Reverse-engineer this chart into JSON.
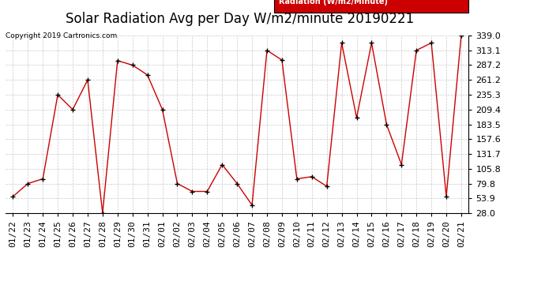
{
  "title": "Solar Radiation Avg per Day W/m2/minute 20190221",
  "copyright": "Copyright 2019 Cartronics.com",
  "legend_label": "Radiation (W/m2/Minute)",
  "x_labels": [
    "01/22",
    "01/23",
    "01/24",
    "01/25",
    "01/26",
    "01/27",
    "01/28",
    "01/29",
    "01/30",
    "01/31",
    "02/01",
    "02/02",
    "02/03",
    "02/04",
    "02/05",
    "02/06",
    "02/07",
    "02/08",
    "02/09",
    "02/10",
    "02/11",
    "02/12",
    "02/13",
    "02/14",
    "02/15",
    "02/16",
    "02/17",
    "02/18",
    "02/19",
    "02/20",
    "02/21"
  ],
  "y_values": [
    57.0,
    79.8,
    88.0,
    235.3,
    209.4,
    261.2,
    28.0,
    295.0,
    287.2,
    270.0,
    209.4,
    79.8,
    66.0,
    66.0,
    113.0,
    79.8,
    42.0,
    313.1,
    296.0,
    88.0,
    91.8,
    75.0,
    326.0,
    195.0,
    326.0,
    183.5,
    113.0,
    313.1,
    326.0,
    57.0,
    339.0
  ],
  "y_ticks": [
    28.0,
    53.9,
    79.8,
    105.8,
    131.7,
    157.6,
    183.5,
    209.4,
    235.3,
    261.2,
    287.2,
    313.1,
    339.0
  ],
  "y_min": 28.0,
  "y_max": 339.0,
  "line_color": "#cc0000",
  "marker_color": "#000000",
  "background_color": "#ffffff",
  "grid_color": "#bbbbbb",
  "title_fontsize": 12,
  "tick_fontsize": 8,
  "xlabel_fontsize": 8,
  "legend_bg_color": "#cc0000",
  "legend_text_color": "#ffffff",
  "fig_width": 6.9,
  "fig_height": 3.75,
  "fig_dpi": 100
}
